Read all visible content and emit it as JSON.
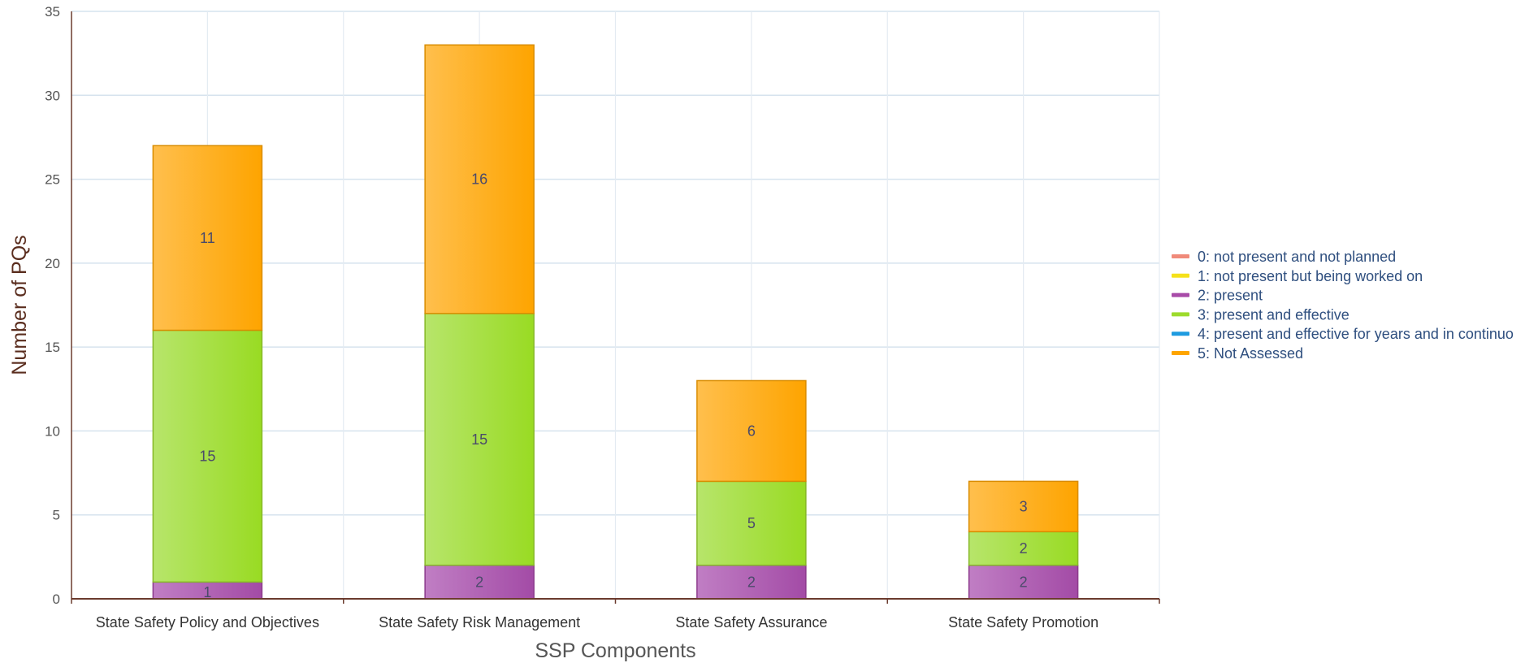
{
  "chart_data": {
    "type": "bar",
    "stacked": true,
    "title": "",
    "xlabel": "SSP Components",
    "ylabel": "Number of PQs",
    "ylim": [
      0,
      35
    ],
    "yticks": [
      0,
      5,
      10,
      15,
      20,
      25,
      30,
      35
    ],
    "grid": true,
    "legend_position": "right",
    "categories": [
      "State Safety Policy and Objectives",
      "State Safety Risk Management",
      "State Safety Assurance",
      "State Safety Promotion"
    ],
    "series": [
      {
        "name": "0: not present and not planned",
        "color": "#f08a7a",
        "values": [
          0,
          0,
          0,
          0
        ]
      },
      {
        "name": "1: not present but being worked on",
        "color": "#f5e11b",
        "values": [
          0,
          0,
          0,
          0
        ]
      },
      {
        "name": "2: present",
        "color": "#a84ba8",
        "values": [
          1,
          2,
          2,
          2
        ]
      },
      {
        "name": "3: present and effective",
        "color": "#9ddb2c",
        "values": [
          15,
          15,
          5,
          2
        ]
      },
      {
        "name": "4: present and effective for years and in continuo",
        "color": "#1e9be0",
        "values": [
          0,
          0,
          0,
          0
        ]
      },
      {
        "name": "5: Not Assessed",
        "color": "#fea500",
        "values": [
          11,
          16,
          6,
          3
        ]
      }
    ]
  }
}
